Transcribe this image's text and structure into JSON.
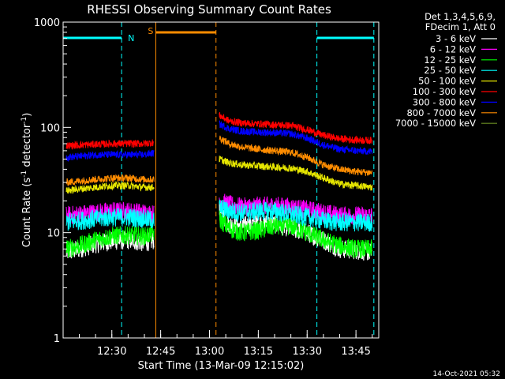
{
  "chart_data": {
    "type": "line",
    "title": "RHESSI Observing Summary Count Rates",
    "xlabel": "Start Time (13-Mar-09 12:15:02)",
    "ylabel_main": "Count Rate (s",
    "ylabel_sup1": "-1",
    "ylabel_mid": " detector",
    "ylabel_sup2": "-1",
    "ylabel_end": ")",
    "y_scale": "log",
    "ylim": [
      1,
      1000
    ],
    "xlim": [
      "12:15:02",
      "13:52:00"
    ],
    "y_ticks": [
      {
        "value": 1,
        "label": "1"
      },
      {
        "value": 10,
        "label": "10"
      },
      {
        "value": 100,
        "label": "100"
      },
      {
        "value": 1000,
        "label": "1000"
      }
    ],
    "x_ticks": [
      "12:30",
      "12:45",
      "13:00",
      "13:15",
      "13:30",
      "13:45"
    ],
    "legend": {
      "placement": "right",
      "header": [
        "Det 1,3,4,5,6,9,",
        "FDecim 1, Att 0"
      ],
      "entries": [
        {
          "label": "3 - 6 keV",
          "color": "#ffffff"
        },
        {
          "label": "6 - 12 keV",
          "color": "#ff00ff"
        },
        {
          "label": "12 - 25 keV",
          "color": "#00ff00"
        },
        {
          "label": "25 - 50 keV",
          "color": "#00ffff"
        },
        {
          "label": "50 - 100 keV",
          "color": "#e6e600"
        },
        {
          "label": "100 - 300 keV",
          "color": "#ff0000"
        },
        {
          "label": "300 - 800 keV",
          "color": "#0000ff"
        },
        {
          "label": "800 - 7000 keV",
          "color": "#ff8c00"
        },
        {
          "label": "7000 - 15000 keV",
          "color": "#6b8e23"
        }
      ]
    },
    "annotations": {
      "night_label": "N",
      "saa_label": "S",
      "night_color": "#00ffff",
      "saa_color": "#ff8c00",
      "night_intervals": [
        [
          "12:15:02",
          "12:33:00"
        ],
        [
          "13:33:00",
          "13:50:30"
        ]
      ],
      "saa_interval": [
        "12:43:30",
        "13:02:00"
      ]
    },
    "series": [
      {
        "name": "3 - 6 keV",
        "color": "#ffffff",
        "segments": [
          {
            "x": [
              "12:16",
              "12:20",
              "12:25",
              "12:30",
              "12:35",
              "12:40",
              "12:43"
            ],
            "y": [
              6.5,
              7.0,
              7.8,
              8.3,
              8.5,
              8.0,
              8.5
            ]
          },
          {
            "x": [
              "13:03",
              "13:06",
              "13:10",
              "13:15",
              "13:20",
              "13:25",
              "13:30",
              "13:35",
              "13:40",
              "13:45",
              "13:50"
            ],
            "y": [
              16,
              12,
              11.5,
              12.5,
              12,
              11,
              10,
              8.5,
              7,
              6.8,
              6.5
            ]
          }
        ]
      },
      {
        "name": "6 - 12 keV",
        "color": "#ff00ff",
        "segments": [
          {
            "x": [
              "12:16",
              "12:20",
              "12:25",
              "12:30",
              "12:35",
              "12:40",
              "12:43"
            ],
            "y": [
              14.5,
              15,
              15.5,
              16,
              16,
              15.5,
              15
            ]
          },
          {
            "x": [
              "13:03",
              "13:06",
              "13:10",
              "13:15",
              "13:20",
              "13:25",
              "13:30",
              "13:35",
              "13:40",
              "13:45",
              "13:50"
            ],
            "y": [
              20,
              18.5,
              17.5,
              18,
              18,
              17.5,
              16.5,
              15.5,
              14.5,
              14.5,
              14.5
            ]
          }
        ]
      },
      {
        "name": "12 - 25 keV",
        "color": "#00ff00",
        "segments": [
          {
            "x": [
              "12:16",
              "12:20",
              "12:25",
              "12:30",
              "12:35",
              "12:40",
              "12:43"
            ],
            "y": [
              7,
              7.5,
              8.5,
              9.3,
              9.5,
              9.2,
              10
            ]
          },
          {
            "x": [
              "13:03",
              "13:06",
              "13:10",
              "13:15",
              "13:20",
              "13:25",
              "13:30",
              "13:35",
              "13:40",
              "13:45",
              "13:50"
            ],
            "y": [
              13.5,
              11,
              10,
              10.5,
              11.5,
              11.5,
              10,
              8.5,
              7.5,
              7,
              7
            ]
          }
        ]
      },
      {
        "name": "25 - 50 keV",
        "color": "#00ffff",
        "segments": [
          {
            "x": [
              "12:16",
              "12:20",
              "12:25",
              "12:30",
              "12:35",
              "12:40",
              "12:43"
            ],
            "y": [
              12.5,
              13,
              13.5,
              14,
              14,
              13.5,
              13
            ]
          },
          {
            "x": [
              "13:03",
              "13:06",
              "13:10",
              "13:15",
              "13:20",
              "13:25",
              "13:30",
              "13:35",
              "13:40",
              "13:45",
              "13:50"
            ],
            "y": [
              17.5,
              16,
              15.5,
              16,
              16,
              15,
              14,
              13,
              12.5,
              12.5,
              12.5
            ]
          }
        ]
      },
      {
        "name": "50 - 100 keV",
        "color": "#e6e600",
        "segments": [
          {
            "x": [
              "12:16",
              "12:20",
              "12:25",
              "12:30",
              "12:35",
              "12:40",
              "12:43"
            ],
            "y": [
              25,
              26,
              27,
              28,
              28,
              27,
              27
            ]
          },
          {
            "x": [
              "13:03",
              "13:06",
              "13:10",
              "13:15",
              "13:20",
              "13:25",
              "13:30",
              "13:35",
              "13:40",
              "13:45",
              "13:50"
            ],
            "y": [
              50,
              46,
              44,
              43,
              42,
              41,
              38,
              33,
              29,
              28,
              27
            ]
          }
        ]
      },
      {
        "name": "100 - 300 keV",
        "color": "#ff0000",
        "segments": [
          {
            "x": [
              "12:16",
              "12:20",
              "12:25",
              "12:30",
              "12:35",
              "12:40",
              "12:43"
            ],
            "y": [
              67,
              68,
              69,
              70,
              70,
              70,
              72
            ]
          },
          {
            "x": [
              "13:03",
              "13:06",
              "13:10",
              "13:15",
              "13:20",
              "13:25",
              "13:30",
              "13:35",
              "13:40",
              "13:45",
              "13:50"
            ],
            "y": [
              130,
              115,
              110,
              108,
              106,
              104,
              95,
              84,
              78,
              76,
              75
            ]
          }
        ]
      },
      {
        "name": "300 - 800 keV",
        "color": "#0000ff",
        "segments": [
          {
            "x": [
              "12:16",
              "12:20",
              "12:25",
              "12:30",
              "12:35",
              "12:40",
              "12:43"
            ],
            "y": [
              52,
              53,
              55,
              55,
              55,
              55,
              57
            ]
          },
          {
            "x": [
              "13:03",
              "13:06",
              "13:10",
              "13:15",
              "13:20",
              "13:25",
              "13:30",
              "13:35",
              "13:40",
              "13:45",
              "13:50"
            ],
            "y": [
              108,
              97,
              92,
              90,
              89,
              87,
              79,
              68,
              62,
              60,
              59
            ]
          }
        ]
      },
      {
        "name": "800 - 7000 keV",
        "color": "#ff8c00",
        "segments": [
          {
            "x": [
              "12:16",
              "12:20",
              "12:25",
              "12:30",
              "12:35",
              "12:40",
              "12:43"
            ],
            "y": [
              30,
              31,
              32,
              33,
              33,
              32,
              32
            ]
          },
          {
            "x": [
              "13:03",
              "13:06",
              "13:10",
              "13:15",
              "13:20",
              "13:25",
              "13:30",
              "13:35",
              "13:40",
              "13:45",
              "13:50"
            ],
            "y": [
              80,
              70,
              65,
              62,
              60,
              58,
              52,
              44,
              40,
              38,
              37
            ]
          }
        ]
      },
      {
        "name": "7000 - 15000 keV",
        "color": "#6b8e23",
        "segments": []
      }
    ]
  },
  "timestamp": "14-Oct-2021 05:32"
}
